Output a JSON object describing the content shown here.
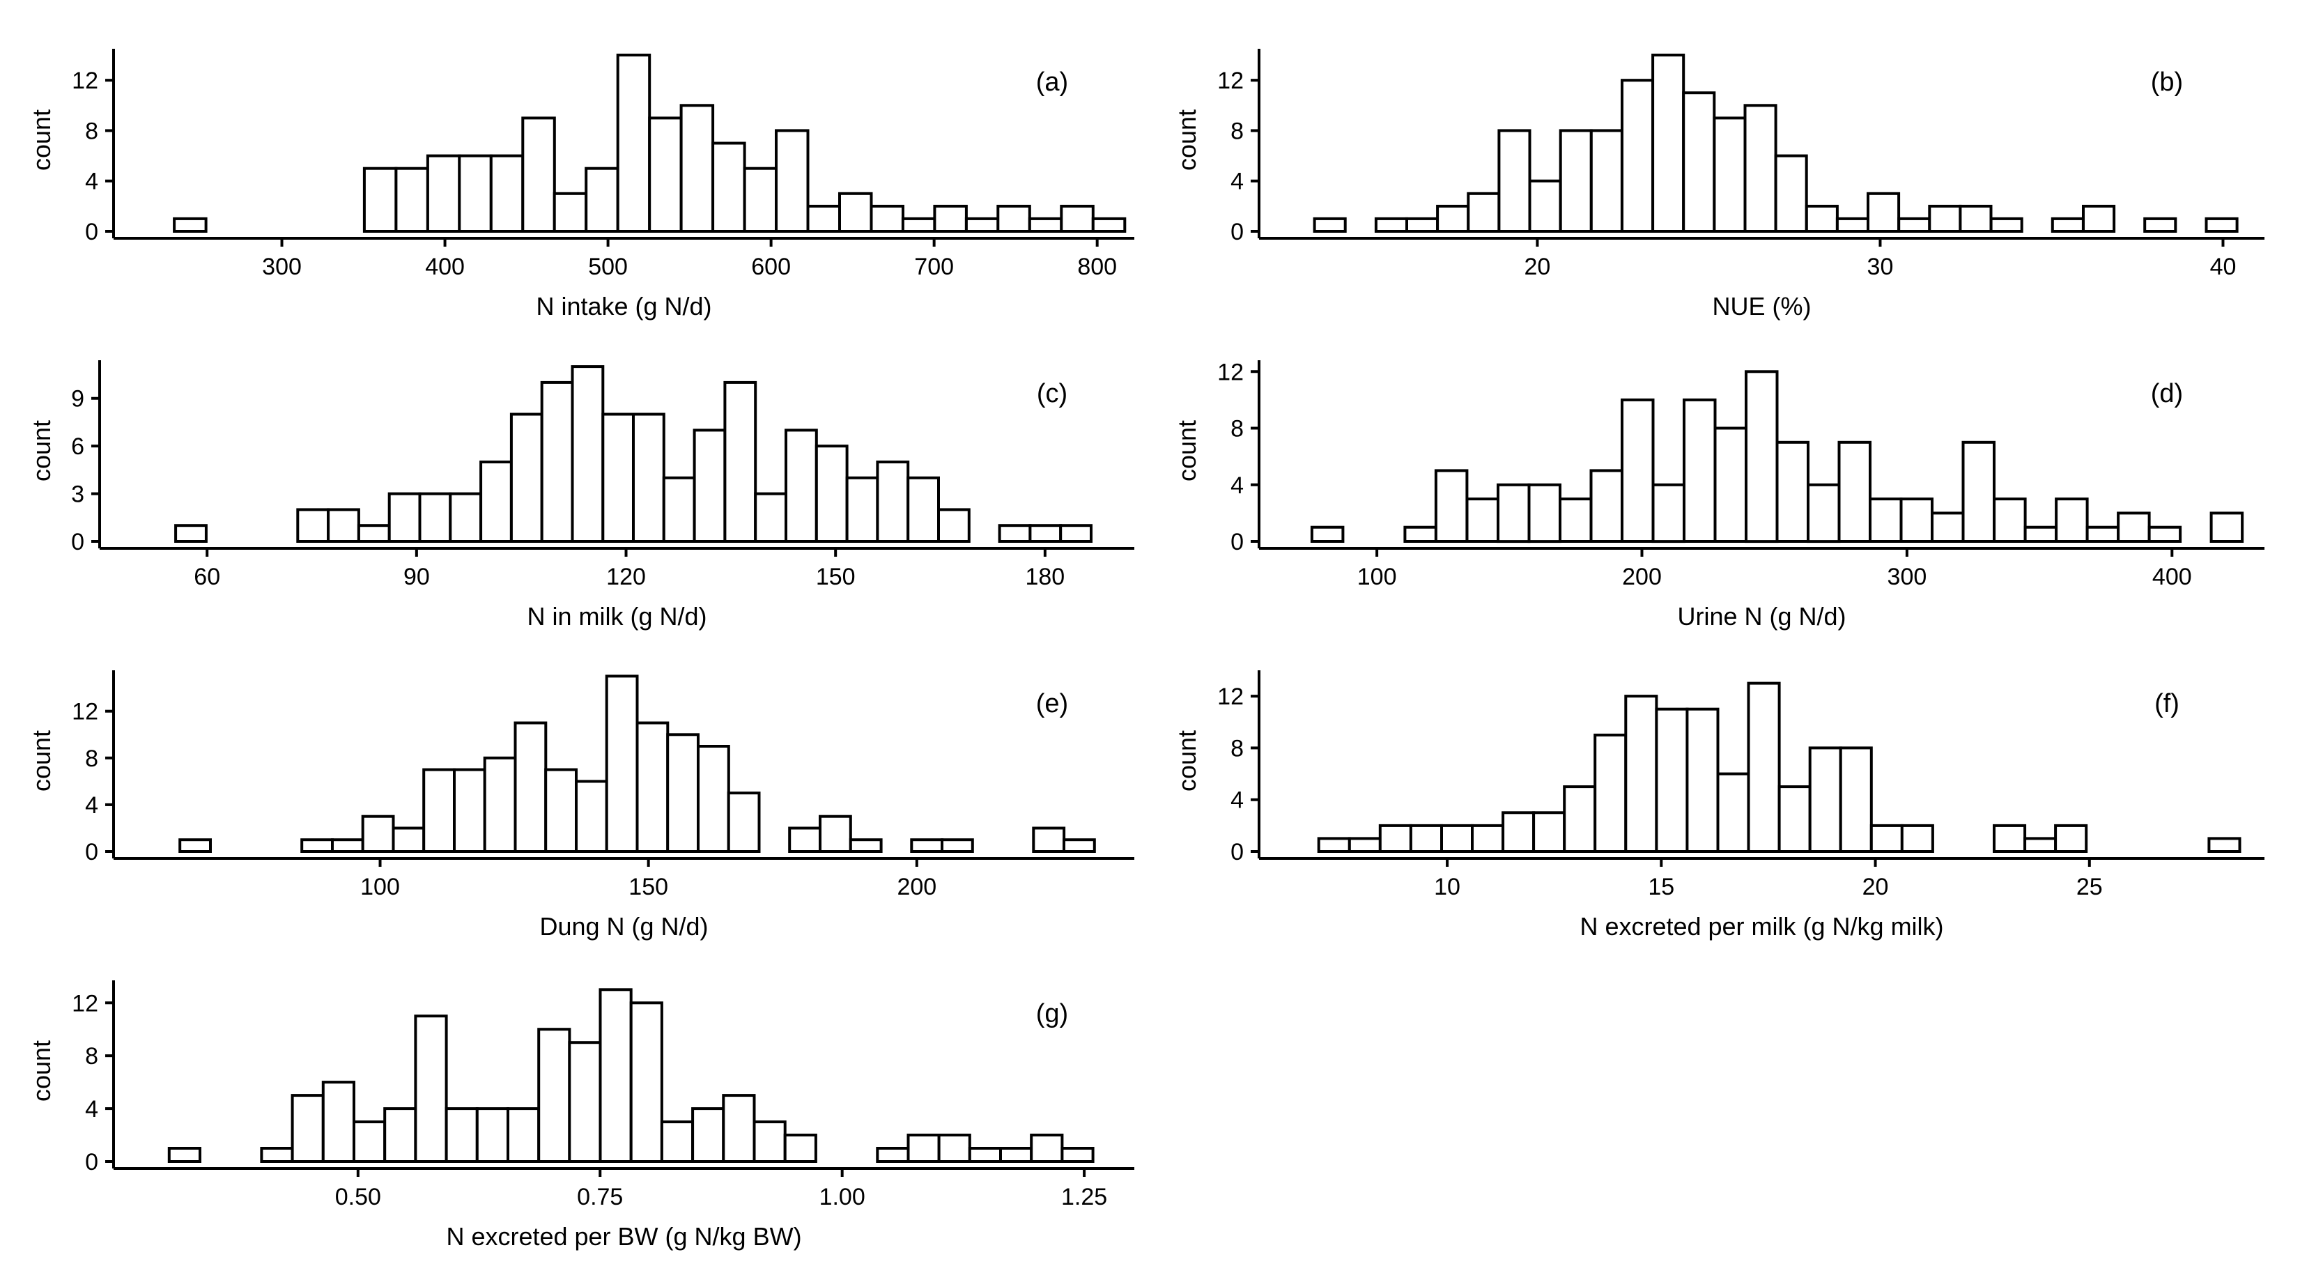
{
  "chart_data": [
    {
      "type": "bar",
      "panel_label": "(a)",
      "xlabel": "N intake (g N/d)",
      "ylabel": "count",
      "x_ticks": [
        300,
        400,
        500,
        600,
        700,
        800
      ],
      "y_ticks": [
        0,
        4,
        8,
        12
      ],
      "x_range": [
        222,
        798
      ],
      "y_max": 14.5,
      "bins": {
        "start": 234,
        "width": 19.43
      },
      "values": [
        1,
        0,
        0,
        0,
        0,
        0,
        5,
        5,
        6,
        6,
        6,
        9,
        3,
        5,
        14,
        9,
        10,
        7,
        5,
        8,
        2,
        3,
        2,
        1,
        2,
        1,
        2,
        1,
        2,
        1
      ]
    },
    {
      "type": "bar",
      "panel_label": "(b)",
      "xlabel": "NUE (%)",
      "ylabel": "count",
      "x_ticks": [
        20,
        30,
        40
      ],
      "y_ticks": [
        0,
        4,
        8,
        12
      ],
      "x_range": [
        13.0,
        40.6
      ],
      "y_max": 14.5,
      "bins": {
        "start": 13.5,
        "width": 0.897
      },
      "values": [
        1,
        0,
        1,
        1,
        2,
        3,
        8,
        4,
        8,
        8,
        12,
        14,
        11,
        9,
        10,
        6,
        2,
        1,
        3,
        1,
        2,
        2,
        1,
        0,
        1,
        2,
        0,
        1,
        0,
        1
      ]
    },
    {
      "type": "bar",
      "panel_label": "(c)",
      "xlabel": "N in milk (g N/d)",
      "ylabel": "count",
      "x_ticks": [
        60,
        90,
        120,
        150,
        180
      ],
      "y_ticks": [
        0,
        3,
        6,
        9
      ],
      "x_range": [
        50.6,
        187
      ],
      "y_max": 11.4,
      "bins": {
        "start": 55.5,
        "width": 4.37
      },
      "values": [
        1,
        0,
        0,
        0,
        2,
        2,
        1,
        3,
        3,
        3,
        5,
        8,
        10,
        11,
        8,
        8,
        4,
        7,
        10,
        3,
        7,
        6,
        4,
        5,
        4,
        2,
        0,
        1,
        1,
        1
      ]
    },
    {
      "type": "bar",
      "panel_label": "(d)",
      "xlabel": "Urine N (g N/d)",
      "ylabel": "count",
      "x_ticks": [
        100,
        200,
        300,
        400
      ],
      "y_ticks": [
        0,
        4,
        8,
        12
      ],
      "x_range": [
        70,
        427
      ],
      "y_max": 12.8,
      "bins": {
        "start": 75.5,
        "width": 11.7
      },
      "values": [
        1,
        0,
        0,
        1,
        5,
        3,
        4,
        4,
        3,
        5,
        10,
        4,
        10,
        8,
        12,
        7,
        4,
        7,
        3,
        3,
        2,
        7,
        3,
        1,
        3,
        1,
        2,
        1,
        0,
        2
      ]
    },
    {
      "type": "bar",
      "panel_label": "(e)",
      "xlabel": "Dung N (g N/d)",
      "ylabel": "count",
      "x_ticks": [
        100,
        150,
        200
      ],
      "y_ticks": [
        0,
        4,
        8,
        12
      ],
      "x_range": [
        58,
        233
      ],
      "y_max": 15.5,
      "bins": {
        "start": 62.7,
        "width": 5.68
      },
      "values": [
        1,
        0,
        0,
        0,
        1,
        1,
        3,
        2,
        7,
        7,
        8,
        11,
        7,
        6,
        15,
        11,
        10,
        9,
        5,
        0,
        2,
        3,
        1,
        0,
        1,
        1,
        0,
        0,
        2,
        1
      ]
    },
    {
      "type": "bar",
      "panel_label": "(f)",
      "xlabel": "N excreted per milk (g N/kg milk)",
      "ylabel": "count",
      "x_ticks": [
        10,
        15,
        20,
        25
      ],
      "y_ticks": [
        0,
        4,
        8,
        12
      ],
      "x_range": [
        6.5,
        28.6
      ],
      "y_max": 14.0,
      "bins": {
        "start": 7.0,
        "width": 0.717
      },
      "values": [
        1,
        1,
        2,
        2,
        2,
        2,
        3,
        3,
        5,
        9,
        12,
        11,
        11,
        6,
        13,
        5,
        8,
        8,
        2,
        2,
        0,
        0,
        2,
        1,
        2,
        0,
        0,
        0,
        0,
        1
      ]
    },
    {
      "type": "bar",
      "panel_label": "(g)",
      "xlabel": "N excreted per BW (g N/kg BW)",
      "ylabel": "count",
      "x_ticks": [
        "0.50",
        "0.75",
        "1.00",
        "1.25"
      ],
      "y_ticks": [
        0,
        4,
        8,
        12
      ],
      "x_range": [
        0.29,
        1.26
      ],
      "y_max": 13.7,
      "bins": {
        "start": 0.305,
        "width": 0.0318
      },
      "values": [
        1,
        0,
        0,
        1,
        5,
        6,
        3,
        4,
        11,
        4,
        4,
        4,
        10,
        9,
        13,
        12,
        3,
        4,
        5,
        3,
        2,
        0,
        0,
        1,
        2,
        2,
        1,
        1,
        2,
        1
      ]
    }
  ]
}
